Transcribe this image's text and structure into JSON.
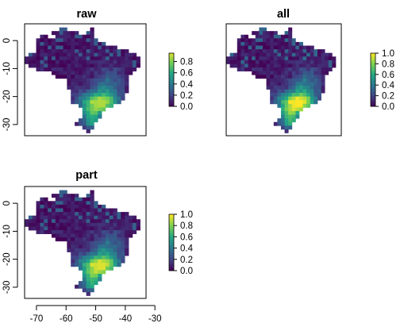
{
  "figure": {
    "colormap": "viridis",
    "colors": [
      "#440154",
      "#414487",
      "#2a788e",
      "#22a884",
      "#7ad151",
      "#fde725"
    ],
    "lon_range": [
      -74,
      -33
    ],
    "lat_range": [
      -34,
      6
    ]
  },
  "chart_data": [
    {
      "type": "heatmap",
      "title": "raw",
      "xlabel": "",
      "ylabel": "",
      "xlim": [
        -74,
        -33
      ],
      "ylim": [
        -34,
        6
      ],
      "yticks": [
        "0",
        "-10",
        "-20",
        "-30"
      ],
      "xticks": [],
      "show_x_axis": false,
      "legend": {
        "ticks": [
          "0.0",
          "0.2",
          "0.4",
          "0.6",
          "0.8"
        ],
        "range": [
          0,
          0.95
        ]
      },
      "field_scale": 0.88
    },
    {
      "type": "heatmap",
      "title": "all",
      "xlabel": "",
      "ylabel": "",
      "xlim": [
        -74,
        -33
      ],
      "ylim": [
        -34,
        6
      ],
      "yticks": [],
      "xticks": [],
      "show_x_axis": false,
      "show_y_axis": false,
      "legend": {
        "ticks": [
          "0.0",
          "0.2",
          "0.4",
          "0.6",
          "0.8",
          "1.0"
        ],
        "range": [
          0,
          1.0
        ]
      },
      "field_scale": 1.0
    },
    {
      "type": "heatmap",
      "title": "part",
      "xlabel": "",
      "ylabel": "",
      "xlim": [
        -74,
        -33
      ],
      "ylim": [
        -34,
        6
      ],
      "yticks": [
        "0",
        "-10",
        "-20",
        "-30"
      ],
      "xticks": [
        "-70",
        "-60",
        "-50",
        "-40",
        "-30"
      ],
      "show_x_axis": true,
      "legend": {
        "ticks": [
          "0.0",
          "0.2",
          "0.4",
          "0.6",
          "0.8",
          "1.0"
        ],
        "range": [
          0,
          1.0
        ]
      },
      "field_scale": 0.95
    }
  ]
}
